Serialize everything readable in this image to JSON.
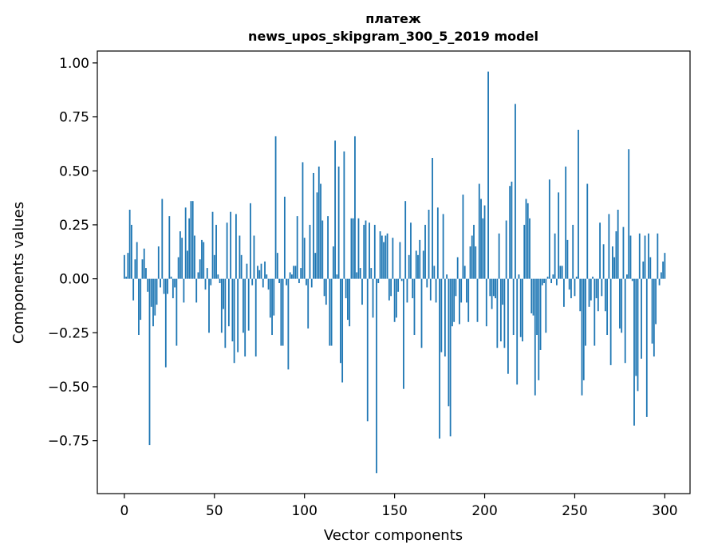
{
  "chart_data": {
    "type": "bar",
    "title_line1": "платеж",
    "title_line2": "news_upos_skipgram_300_5_2019 model",
    "xlabel": "Vector components",
    "ylabel": "Components values",
    "xlim": [
      -15,
      314
    ],
    "ylim": [
      -0.995,
      1.055
    ],
    "xticks": [
      0,
      50,
      100,
      150,
      200,
      250,
      300
    ],
    "xtick_labels": [
      "0",
      "50",
      "100",
      "150",
      "200",
      "250",
      "300"
    ],
    "yticks": [
      -0.75,
      -0.5,
      -0.25,
      0.0,
      0.25,
      0.5,
      0.75,
      1.0
    ],
    "ytick_labels": [
      "−0.75",
      "−0.50",
      "−0.25",
      "0.00",
      "0.25",
      "0.50",
      "0.75",
      "1.00"
    ],
    "bar_color": "#1f77b4",
    "values": [
      0.11,
      0.01,
      0.12,
      0.32,
      0.25,
      -0.1,
      0.09,
      0.17,
      -0.26,
      -0.19,
      0.09,
      0.14,
      0.05,
      -0.06,
      -0.77,
      -0.13,
      -0.22,
      -0.17,
      -0.12,
      0.15,
      -0.04,
      0.37,
      -0.07,
      -0.41,
      -0.07,
      0.29,
      0.01,
      -0.09,
      -0.04,
      -0.31,
      0.1,
      0.22,
      0.19,
      -0.11,
      0.33,
      0.13,
      0.28,
      0.36,
      0.36,
      0.2,
      -0.11,
      0.03,
      0.09,
      0.18,
      0.17,
      -0.05,
      0.05,
      -0.25,
      -0.03,
      0.31,
      0.11,
      0.25,
      0.02,
      -0.02,
      -0.25,
      -0.14,
      -0.32,
      0.26,
      -0.22,
      0.31,
      -0.29,
      -0.39,
      0.3,
      -0.34,
      0.2,
      0.11,
      -0.25,
      -0.36,
      0.07,
      -0.24,
      0.35,
      -0.03,
      0.2,
      -0.36,
      0.06,
      0.04,
      0.07,
      -0.04,
      0.08,
      0.02,
      -0.05,
      -0.18,
      -0.26,
      -0.17,
      0.66,
      0.12,
      -0.02,
      -0.31,
      -0.31,
      0.38,
      -0.03,
      -0.42,
      0.03,
      0.02,
      0.06,
      0.06,
      0.29,
      -0.02,
      0.05,
      0.54,
      0.19,
      -0.03,
      -0.23,
      0.25,
      -0.04,
      0.49,
      0.12,
      0.4,
      0.52,
      0.44,
      0.27,
      -0.08,
      -0.12,
      0.29,
      -0.31,
      -0.31,
      0.15,
      0.64,
      0.02,
      0.52,
      -0.39,
      -0.48,
      0.59,
      -0.09,
      -0.19,
      -0.22,
      0.28,
      0.28,
      0.66,
      0.03,
      0.28,
      0.05,
      -0.12,
      0.25,
      0.27,
      -0.66,
      0.26,
      0.05,
      -0.18,
      0.25,
      -0.9,
      -0.02,
      0.22,
      0.2,
      0.17,
      0.2,
      0.21,
      -0.1,
      -0.08,
      0.19,
      -0.2,
      -0.18,
      -0.06,
      0.17,
      -0.01,
      -0.51,
      0.36,
      -0.11,
      0.11,
      0.26,
      -0.09,
      -0.26,
      0.13,
      0.11,
      0.18,
      -0.32,
      0.13,
      0.25,
      -0.04,
      0.32,
      -0.1,
      0.56,
      0.06,
      -0.11,
      0.33,
      -0.74,
      -0.34,
      0.3,
      -0.36,
      0.02,
      -0.59,
      -0.73,
      -0.22,
      -0.2,
      -0.08,
      0.1,
      -0.21,
      -0.11,
      0.39,
      0.06,
      -0.11,
      -0.2,
      0.15,
      0.2,
      0.25,
      0.15,
      -0.2,
      0.44,
      0.37,
      0.28,
      0.34,
      -0.22,
      0.96,
      -0.08,
      -0.14,
      -0.08,
      -0.09,
      -0.32,
      0.21,
      -0.29,
      -0.12,
      -0.32,
      0.27,
      -0.44,
      0.43,
      0.45,
      -0.26,
      0.81,
      -0.49,
      0.02,
      -0.27,
      -0.29,
      0.25,
      0.37,
      0.35,
      0.28,
      -0.16,
      -0.17,
      -0.54,
      -0.26,
      -0.47,
      -0.33,
      -0.03,
      -0.02,
      -0.25,
      0.01,
      0.46,
      -0.02,
      0.02,
      0.21,
      -0.03,
      0.4,
      0.06,
      0.06,
      -0.13,
      0.52,
      0.18,
      -0.05,
      -0.09,
      0.25,
      -0.08,
      0.01,
      0.69,
      -0.15,
      -0.54,
      -0.47,
      -0.31,
      0.44,
      -0.13,
      -0.1,
      0.01,
      -0.31,
      -0.09,
      -0.15,
      0.26,
      -0.08,
      0.16,
      -0.15,
      -0.26,
      0.3,
      -0.4,
      0.15,
      0.1,
      0.22,
      0.32,
      -0.23,
      -0.25,
      0.24,
      -0.39,
      0.02,
      0.6,
      0.2,
      -0.01,
      -0.68,
      -0.45,
      -0.52,
      0.21,
      -0.37,
      0.08,
      0.2,
      -0.64,
      0.21,
      0.1,
      -0.3,
      -0.36,
      -0.21,
      0.21,
      -0.03,
      0.03,
      0.08,
      0.12
    ]
  }
}
